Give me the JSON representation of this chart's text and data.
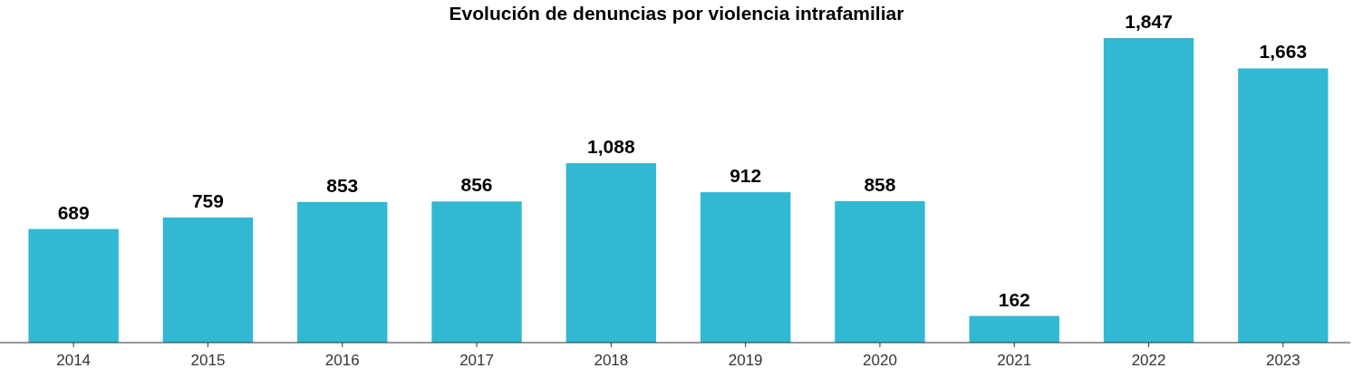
{
  "chart_data": {
    "type": "bar",
    "title": "Evolución de denuncias por violencia intrafamiliar",
    "categories": [
      "2014",
      "2015",
      "2016",
      "2017",
      "2018",
      "2019",
      "2020",
      "2021",
      "2022",
      "2023"
    ],
    "values": [
      689,
      759,
      853,
      856,
      1088,
      912,
      858,
      162,
      1847,
      1663
    ],
    "value_labels": [
      "689",
      "759",
      "853",
      "856",
      "1,088",
      "912",
      "858",
      "162",
      "1,847",
      "1,663"
    ],
    "color": "#31b8d3"
  }
}
